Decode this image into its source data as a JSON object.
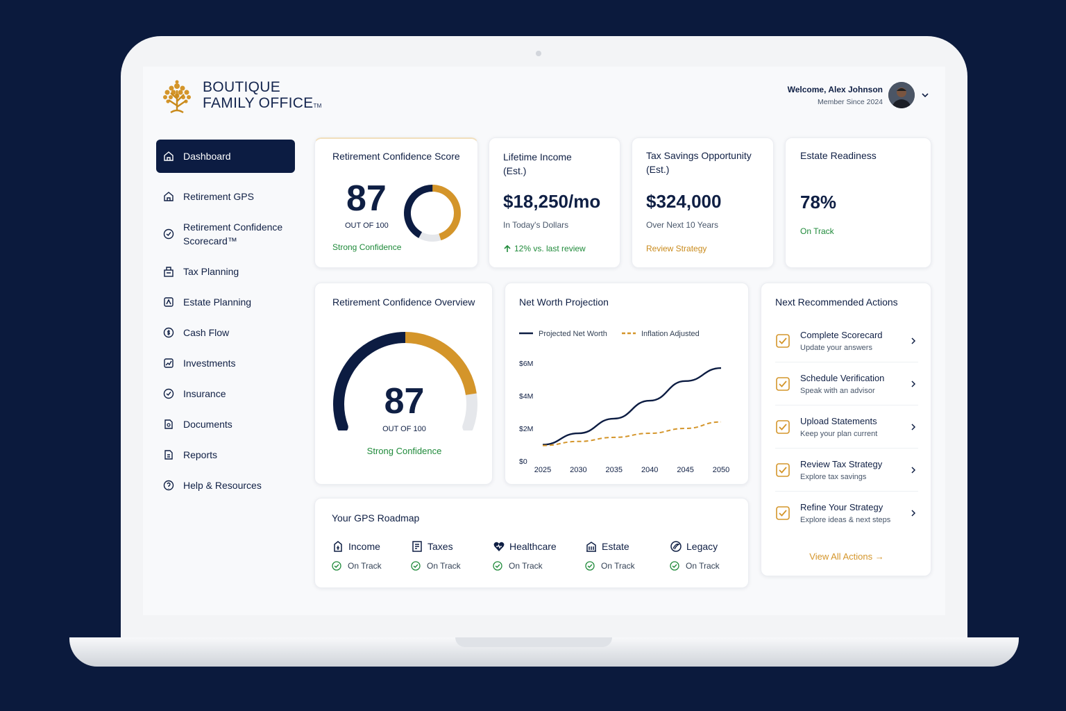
{
  "brand": {
    "line1": "BOUTIQUE",
    "line2": "FAMILY OFFICE",
    "tm": "TM"
  },
  "user": {
    "welcome": "Welcome, Alex Johnson",
    "since": "Member Since 2024"
  },
  "colors": {
    "navy": "#0c1c42",
    "gold": "#d4952a",
    "green": "#1f8a3a",
    "track": "#e5e7eb"
  },
  "sidebar": {
    "items": [
      {
        "label": "Dashboard",
        "icon": "home-icon",
        "active": true
      },
      {
        "label": "Retirement GPS",
        "icon": "home-icon"
      },
      {
        "label": "Retirement Confidence\nScorecard™",
        "icon": "gauge-icon"
      },
      {
        "label": "Tax Planning",
        "icon": "tax-icon"
      },
      {
        "label": "Estate Planning",
        "icon": "estate-icon"
      },
      {
        "label": "Cash Flow",
        "icon": "cash-icon"
      },
      {
        "label": "Investments",
        "icon": "chart-icon"
      },
      {
        "label": "Insurance",
        "icon": "shield-check-icon"
      },
      {
        "label": "Documents",
        "icon": "document-icon"
      },
      {
        "label": "Reports",
        "icon": "report-icon"
      },
      {
        "label": "Help & Resources",
        "icon": "help-icon"
      }
    ]
  },
  "score_card": {
    "title": "Retirement Confidence Score",
    "value": "87",
    "out_of": "OUT OF 100",
    "status": "Strong Confidence",
    "score_fraction": 0.87
  },
  "income_card": {
    "title": "Lifetime Income\n(Est.)",
    "value": "$18,250/mo",
    "sub": "In Today's Dollars",
    "trend": "12% vs. last review"
  },
  "tax_card": {
    "title": "Tax Savings Opportunity\n(Est.)",
    "value": "$324,000",
    "sub": "Over Next 10 Years",
    "link": "Review Strategy"
  },
  "estate_card": {
    "title": "Estate Readiness",
    "value": "78%",
    "status": "On Track"
  },
  "overview_card": {
    "title": "Retirement Confidence Overview",
    "value": "87",
    "out_of": "OUT OF 100",
    "status": "Strong Confidence",
    "score_fraction": 0.87
  },
  "projection": {
    "title": "Net Worth Projection"
  },
  "chart_data": {
    "type": "line",
    "title": "Net Worth Projection",
    "x": [
      2025,
      2030,
      2035,
      2040,
      2045,
      2050
    ],
    "xticks": [
      "2025",
      "2030",
      "2035",
      "2040",
      "2045",
      "2050"
    ],
    "yticks": [
      "$0",
      "$2M",
      "$4M",
      "$6M"
    ],
    "ylim": [
      0,
      6
    ],
    "series": [
      {
        "name": "Projected Net Worth",
        "color": "#0c1c42",
        "style": "solid",
        "values": [
          1.0,
          1.7,
          2.6,
          3.7,
          4.9,
          5.7
        ]
      },
      {
        "name": "Inflation Adjusted",
        "color": "#d4952a",
        "style": "dashed",
        "values": [
          0.95,
          1.2,
          1.45,
          1.7,
          2.0,
          2.4
        ]
      }
    ],
    "legend": "top-left",
    "grid": false
  },
  "actions": {
    "title": "Next Recommended Actions",
    "items": [
      {
        "title": "Complete Scorecard",
        "sub": "Update your answers"
      },
      {
        "title": "Schedule Verification",
        "sub": "Speak with an advisor"
      },
      {
        "title": "Upload Statements",
        "sub": "Keep your plan current"
      },
      {
        "title": "Review Tax Strategy",
        "sub": "Explore tax savings"
      },
      {
        "title": "Refine Your Strategy",
        "sub": "Explore ideas & next steps"
      }
    ],
    "view_all": "View All Actions →"
  },
  "roadmap": {
    "title": "Your GPS Roadmap",
    "items": [
      {
        "label": "Income",
        "status": "On Track",
        "icon": "income-icon"
      },
      {
        "label": "Taxes",
        "status": "On Track",
        "icon": "taxes-icon"
      },
      {
        "label": "Healthcare",
        "status": "On Track",
        "icon": "heart-icon"
      },
      {
        "label": "Estate",
        "status": "On Track",
        "icon": "building-icon"
      },
      {
        "label": "Legacy",
        "status": "On Track",
        "icon": "legacy-icon"
      }
    ]
  }
}
